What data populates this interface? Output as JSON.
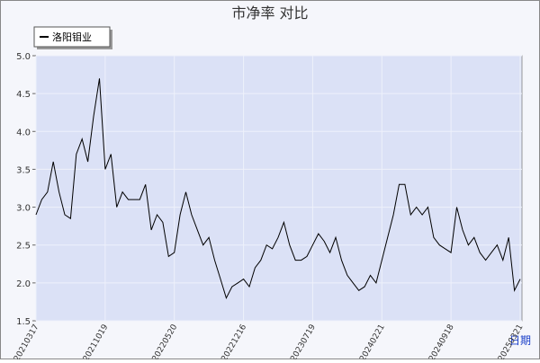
{
  "chart_data": {
    "type": "line",
    "title": "市净率  对比",
    "x_label": "日期",
    "categories": [
      "20210317",
      null,
      null,
      null,
      null,
      null,
      null,
      null,
      null,
      null,
      null,
      null,
      "20211019",
      null,
      null,
      null,
      null,
      null,
      null,
      null,
      null,
      null,
      null,
      null,
      "20220520",
      null,
      null,
      null,
      null,
      null,
      null,
      null,
      null,
      null,
      null,
      null,
      "20221216",
      null,
      null,
      null,
      null,
      null,
      null,
      null,
      null,
      null,
      null,
      null,
      "20230719",
      null,
      null,
      null,
      null,
      null,
      null,
      null,
      null,
      null,
      null,
      null,
      "20240221",
      null,
      null,
      null,
      null,
      null,
      null,
      null,
      null,
      null,
      null,
      null,
      "20240918",
      null,
      null,
      null,
      null,
      null,
      null,
      null,
      null,
      null,
      null,
      null,
      "20250321"
    ],
    "series": [
      {
        "name": "洛阳钼业",
        "color": "#000000",
        "values": [
          2.9,
          3.1,
          3.2,
          3.6,
          3.2,
          2.9,
          2.85,
          3.7,
          3.9,
          3.6,
          4.2,
          4.7,
          3.5,
          3.7,
          3.0,
          3.2,
          3.1,
          3.1,
          3.1,
          3.3,
          2.7,
          2.9,
          2.8,
          2.35,
          2.4,
          2.9,
          3.2,
          2.9,
          2.7,
          2.5,
          2.6,
          2.3,
          2.05,
          1.8,
          1.95,
          2.0,
          2.05,
          1.95,
          2.2,
          2.3,
          2.5,
          2.45,
          2.6,
          2.8,
          2.5,
          2.3,
          2.3,
          2.35,
          2.5,
          2.65,
          2.55,
          2.4,
          2.6,
          2.3,
          2.1,
          2.0,
          1.9,
          1.95,
          2.1,
          2.0,
          2.3,
          2.6,
          2.9,
          3.3,
          3.3,
          2.9,
          3.0,
          2.9,
          3.0,
          2.6,
          2.5,
          2.45,
          2.4,
          3.0,
          2.7,
          2.5,
          2.6,
          2.4,
          2.3,
          2.4,
          2.5,
          2.3,
          2.6,
          1.9,
          2.05
        ]
      }
    ],
    "ylim": [
      1.5,
      5
    ],
    "yticks": [
      1.5,
      {
        "value": 2,
        "label": "2.0"
      },
      2.5,
      {
        "value": 3,
        "label": "3.0"
      },
      3.5,
      {
        "value": 4,
        "label": "4.0"
      },
      4.5,
      {
        "value": 5,
        "label": "5.0"
      }
    ],
    "grid": true,
    "legend": "top-left"
  }
}
